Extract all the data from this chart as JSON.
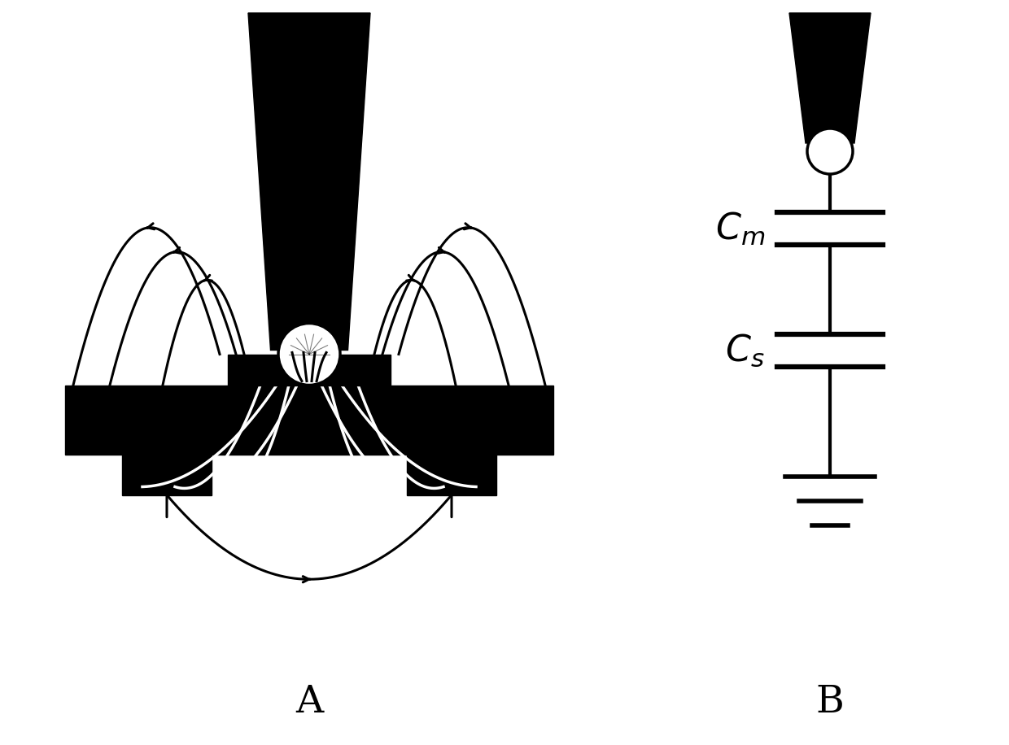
{
  "bg_color": "#ffffff",
  "black": "#000000",
  "white": "#ffffff",
  "fig_width": 12.4,
  "fig_height": 9.16,
  "label_A": "A",
  "label_B": "B",
  "label_Cm": "$C_m$",
  "label_Cs": "$C_s$"
}
